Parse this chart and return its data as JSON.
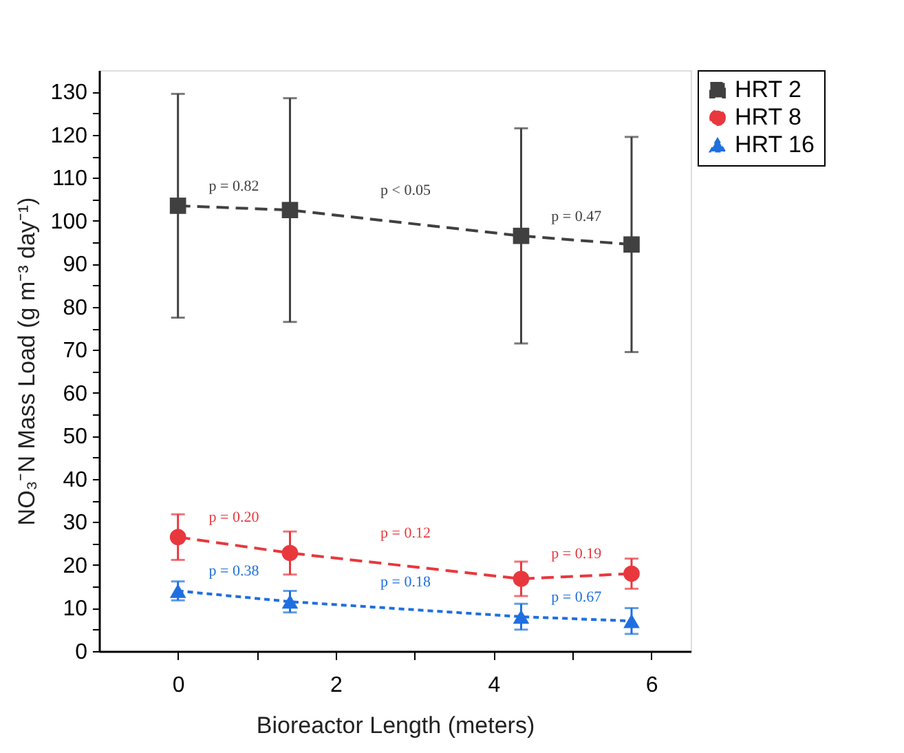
{
  "chart_data": {
    "type": "line",
    "xlabel": "Bioreactor Length (meters)",
    "ylabel": "NO₃⁻N Mass Load (g m⁻³ day⁻¹)",
    "x": [
      0,
      1.42,
      4.35,
      5.75
    ],
    "series": [
      {
        "name": "HRT 2",
        "color": "#404040",
        "marker": "square",
        "line_style": "dashed",
        "values": [
          103.5,
          102.5,
          96.5,
          94.5
        ],
        "errors": [
          26,
          26,
          25,
          25
        ]
      },
      {
        "name": "HRT 8",
        "color": "#e8383d",
        "marker": "circle",
        "line_style": "dashed",
        "values": [
          26.5,
          22.8,
          16.8,
          18
        ],
        "errors": [
          5.3,
          5,
          4,
          3.5
        ]
      },
      {
        "name": "HRT 16",
        "color": "#1f6fe0",
        "marker": "triangle",
        "line_style": "dotted",
        "values": [
          14,
          11.5,
          8,
          7
        ],
        "errors": [
          2.2,
          2.5,
          3,
          3
        ]
      }
    ],
    "xlim": [
      -1,
      6.5
    ],
    "xticks": [
      0,
      {
        "value": 1,
        "label": null
      },
      2,
      {
        "value": 3,
        "label": null
      },
      4,
      {
        "value": 5,
        "label": null
      },
      6
    ],
    "ylim": [
      0,
      135
    ],
    "yticks": [
      0,
      {
        "value": 5,
        "label": null
      },
      10,
      {
        "value": 15,
        "label": null
      },
      20,
      {
        "value": 25,
        "label": null
      },
      30,
      {
        "value": 35,
        "label": null
      },
      40,
      {
        "value": 45,
        "label": null
      },
      50,
      {
        "value": 55,
        "label": null
      },
      60,
      {
        "value": 65,
        "label": null
      },
      70,
      {
        "value": 75,
        "label": null
      },
      80,
      {
        "value": 85,
        "label": null
      },
      90,
      {
        "value": 95,
        "label": null
      },
      100,
      {
        "value": 105,
        "label": null
      },
      110,
      {
        "value": 115,
        "label": null
      },
      120,
      {
        "value": 125,
        "label": null
      },
      130
    ],
    "annotations": [
      "p = 0.82",
      "p < 0.05",
      "p = 0.47",
      "p = 0.20",
      "p = 0.12",
      "p = 0.19",
      "p = 0.38",
      "p = 0.18",
      "p = 0.67"
    ],
    "grid": false,
    "legend": "top right"
  }
}
